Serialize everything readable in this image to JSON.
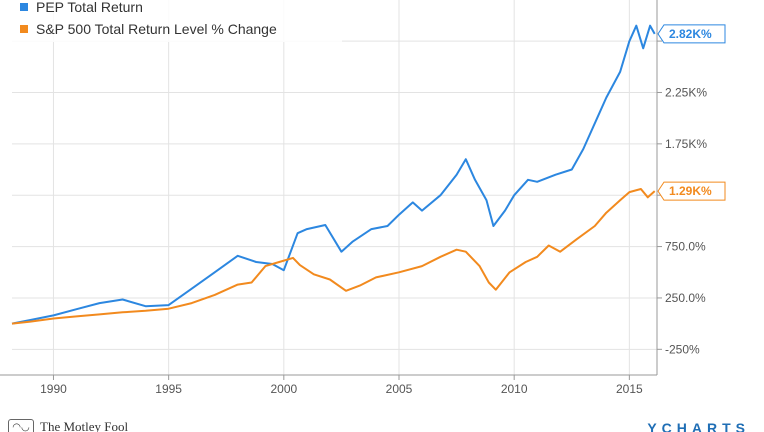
{
  "chart_data": {
    "type": "line",
    "x_range": [
      1988.2,
      2016.2
    ],
    "ylim": [
      -500,
      3150
    ],
    "y_ticks": [
      {
        "value": -250,
        "label": "-250%"
      },
      {
        "value": 250,
        "label": "250.0%"
      },
      {
        "value": 750,
        "label": "750.0%"
      },
      {
        "value": 1250,
        "label": ""
      },
      {
        "value": 1750,
        "label": "1.75K%"
      },
      {
        "value": 2250,
        "label": "2.25K%"
      },
      {
        "value": 2750,
        "label": ""
      }
    ],
    "x_ticks": [
      {
        "value": 1990,
        "label": "1990"
      },
      {
        "value": 1995,
        "label": "1995"
      },
      {
        "value": 2000,
        "label": "2000"
      },
      {
        "value": 2005,
        "label": "2005"
      },
      {
        "value": 2010,
        "label": "2010"
      },
      {
        "value": 2015,
        "label": "2015"
      }
    ],
    "grid": true,
    "legend_position": "top-left",
    "series": [
      {
        "name": "PEP Total Return",
        "color": "#2c87e0",
        "end_label": "2.82K%",
        "points": [
          [
            1988.2,
            0
          ],
          [
            1989,
            35
          ],
          [
            1990,
            80
          ],
          [
            1991,
            140
          ],
          [
            1992,
            200
          ],
          [
            1993,
            235
          ],
          [
            1994,
            170
          ],
          [
            1995,
            180
          ],
          [
            1996,
            340
          ],
          [
            1997,
            500
          ],
          [
            1998,
            660
          ],
          [
            1998.8,
            600
          ],
          [
            1999.5,
            580
          ],
          [
            2000,
            520
          ],
          [
            2000.6,
            880
          ],
          [
            2001,
            920
          ],
          [
            2001.8,
            960
          ],
          [
            2002.5,
            700
          ],
          [
            2003,
            800
          ],
          [
            2003.8,
            920
          ],
          [
            2004.5,
            950
          ],
          [
            2005,
            1060
          ],
          [
            2005.6,
            1180
          ],
          [
            2006,
            1100
          ],
          [
            2006.8,
            1250
          ],
          [
            2007.5,
            1450
          ],
          [
            2007.9,
            1600
          ],
          [
            2008.3,
            1400
          ],
          [
            2008.8,
            1200
          ],
          [
            2009.1,
            950
          ],
          [
            2009.6,
            1100
          ],
          [
            2010,
            1250
          ],
          [
            2010.6,
            1400
          ],
          [
            2011,
            1380
          ],
          [
            2011.8,
            1450
          ],
          [
            2012.5,
            1500
          ],
          [
            2013,
            1700
          ],
          [
            2013.6,
            2000
          ],
          [
            2014,
            2200
          ],
          [
            2014.6,
            2450
          ],
          [
            2015,
            2750
          ],
          [
            2015.3,
            2900
          ],
          [
            2015.6,
            2680
          ],
          [
            2015.9,
            2900
          ],
          [
            2016.1,
            2820
          ]
        ]
      },
      {
        "name": "S&P 500 Total Return Level % Change",
        "color": "#f28a1e",
        "end_label": "1.29K%",
        "points": [
          [
            1988.2,
            0
          ],
          [
            1989,
            20
          ],
          [
            1990,
            50
          ],
          [
            1991,
            70
          ],
          [
            1992,
            90
          ],
          [
            1993,
            110
          ],
          [
            1994,
            125
          ],
          [
            1995,
            145
          ],
          [
            1996,
            200
          ],
          [
            1997,
            280
          ],
          [
            1998,
            380
          ],
          [
            1998.6,
            400
          ],
          [
            1999.2,
            560
          ],
          [
            1999.8,
            600
          ],
          [
            2000.4,
            640
          ],
          [
            2000.7,
            570
          ],
          [
            2001.3,
            480
          ],
          [
            2002,
            430
          ],
          [
            2002.7,
            320
          ],
          [
            2003.3,
            370
          ],
          [
            2004,
            450
          ],
          [
            2005,
            500
          ],
          [
            2006,
            560
          ],
          [
            2006.8,
            650
          ],
          [
            2007.5,
            720
          ],
          [
            2007.9,
            700
          ],
          [
            2008.5,
            560
          ],
          [
            2008.9,
            400
          ],
          [
            2009.2,
            330
          ],
          [
            2009.8,
            500
          ],
          [
            2010.5,
            600
          ],
          [
            2011,
            650
          ],
          [
            2011.5,
            760
          ],
          [
            2012,
            700
          ],
          [
            2012.7,
            820
          ],
          [
            2013.5,
            950
          ],
          [
            2014,
            1080
          ],
          [
            2014.6,
            1200
          ],
          [
            2015,
            1280
          ],
          [
            2015.5,
            1310
          ],
          [
            2015.8,
            1230
          ],
          [
            2016.1,
            1290
          ]
        ]
      }
    ]
  },
  "footer": {
    "left_logo_text": "The Motley Fool",
    "right_logo_text": "YCHARTS"
  }
}
